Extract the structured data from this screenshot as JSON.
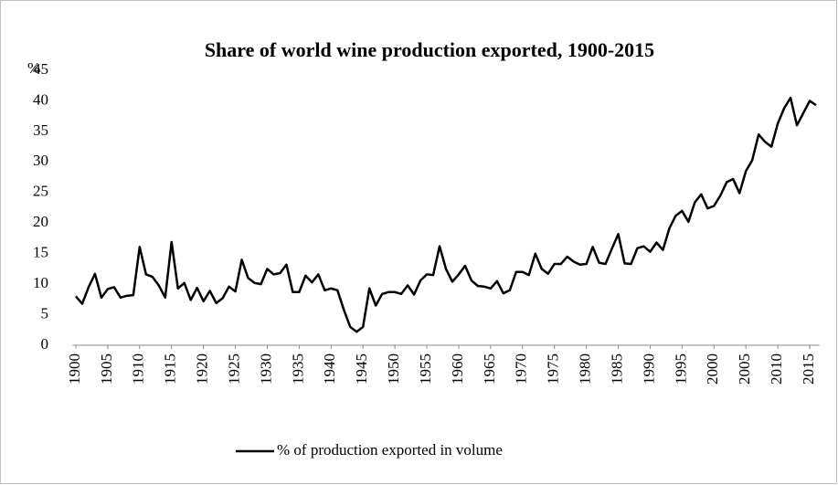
{
  "chart_data": {
    "type": "line",
    "title": "Share of world wine production exported, 1900-2015",
    "y_label": "%",
    "x": [
      1900,
      1901,
      1902,
      1903,
      1904,
      1905,
      1906,
      1907,
      1908,
      1909,
      1910,
      1911,
      1912,
      1913,
      1914,
      1915,
      1916,
      1917,
      1918,
      1919,
      1920,
      1921,
      1922,
      1923,
      1924,
      1925,
      1926,
      1927,
      1928,
      1929,
      1930,
      1931,
      1932,
      1933,
      1934,
      1935,
      1936,
      1937,
      1938,
      1939,
      1940,
      1941,
      1942,
      1943,
      1944,
      1945,
      1946,
      1947,
      1948,
      1949,
      1950,
      1951,
      1952,
      1953,
      1954,
      1955,
      1956,
      1957,
      1958,
      1959,
      1960,
      1961,
      1962,
      1963,
      1964,
      1965,
      1966,
      1967,
      1968,
      1969,
      1970,
      1971,
      1972,
      1973,
      1974,
      1975,
      1976,
      1977,
      1978,
      1979,
      1980,
      1981,
      1982,
      1983,
      1984,
      1985,
      1986,
      1987,
      1988,
      1989,
      1990,
      1991,
      1992,
      1993,
      1994,
      1995,
      1996,
      1997,
      1998,
      1999,
      2000,
      2001,
      2002,
      2003,
      2004,
      2005,
      2006,
      2007,
      2008,
      2009,
      2010,
      2011,
      2012,
      2013,
      2014,
      2015,
      2016
    ],
    "series": [
      {
        "name": "% of production exported in volume",
        "color": "#000000",
        "values": [
          8,
          6.8,
          9.5,
          11.7,
          7.8,
          9.2,
          9.5,
          7.8,
          8.1,
          8.2,
          16.1,
          11.6,
          11.2,
          9.8,
          7.8,
          16.9,
          9.3,
          10.2,
          7.4,
          9.4,
          7.2,
          8.9,
          6.9,
          7.7,
          9.6,
          8.8,
          14,
          11,
          10.2,
          10,
          12.5,
          11.6,
          11.8,
          13.2,
          8.7,
          8.7,
          11.4,
          10.3,
          11.6,
          9,
          9.3,
          9,
          5.8,
          3,
          2.2,
          3,
          9.3,
          6.5,
          8.4,
          8.7,
          8.7,
          8.4,
          9.8,
          8.3,
          10.6,
          11.6,
          11.5,
          16.2,
          12.5,
          10.4,
          11.6,
          13,
          10.6,
          9.7,
          9.6,
          9.3,
          10.5,
          8.5,
          9,
          12,
          12,
          11.5,
          15,
          12.5,
          11.7,
          13.3,
          13.3,
          14.5,
          13.7,
          13.2,
          13.3,
          16.1,
          13.5,
          13.3,
          15.8,
          18.2,
          13.4,
          13.3,
          15.9,
          16.2,
          15.3,
          16.8,
          15.6,
          19.1,
          21.2,
          22,
          20.2,
          23.4,
          24.7,
          22.4,
          22.8,
          24.5,
          26.7,
          27.2,
          24.9,
          28.5,
          30.3,
          34.5,
          33.3,
          32.5,
          36.3,
          38.8,
          40.5,
          36,
          38,
          40,
          39.3
        ]
      }
    ],
    "xlim": [
      1899.5,
      2016.5
    ],
    "xticks": [
      1900,
      1905,
      1910,
      1915,
      1920,
      1925,
      1930,
      1935,
      1940,
      1945,
      1950,
      1955,
      1960,
      1965,
      1970,
      1975,
      1980,
      1985,
      1990,
      1995,
      2000,
      2005,
      2010,
      2015
    ],
    "ylim": [
      0,
      45
    ],
    "yticks": [
      0,
      5,
      10,
      15,
      20,
      25,
      30,
      35,
      40,
      45
    ],
    "grid": false,
    "legend": "bottom"
  }
}
